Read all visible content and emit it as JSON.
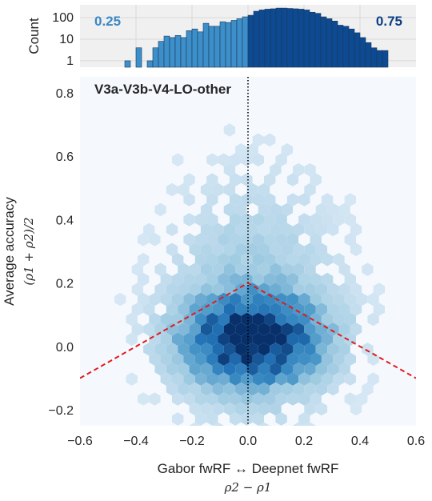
{
  "chart_data": [
    {
      "type": "bar",
      "panel": "top-histogram",
      "ylabel": "Count",
      "yscale": "log",
      "yticks": [
        "1",
        "10",
        "100"
      ],
      "xlim": [
        -0.6,
        0.6
      ],
      "ylim_log10": [
        -0.3,
        2.6
      ],
      "annotations": [
        {
          "text": "0.25",
          "side": "left",
          "color": "#3a88c4"
        },
        {
          "text": "0.75",
          "side": "right",
          "color": "#0b3e82"
        }
      ],
      "bin_width": 0.02,
      "bins": [
        {
          "x0": -0.44,
          "count": 1
        },
        {
          "x0": -0.42,
          "count": 0
        },
        {
          "x0": -0.4,
          "count": 4
        },
        {
          "x0": -0.38,
          "count": 0
        },
        {
          "x0": -0.36,
          "count": 1
        },
        {
          "x0": -0.34,
          "count": 4
        },
        {
          "x0": -0.32,
          "count": 8
        },
        {
          "x0": -0.3,
          "count": 14
        },
        {
          "x0": -0.28,
          "count": 12
        },
        {
          "x0": -0.26,
          "count": 15
        },
        {
          "x0": -0.24,
          "count": 12
        },
        {
          "x0": -0.22,
          "count": 25
        },
        {
          "x0": -0.2,
          "count": 30
        },
        {
          "x0": -0.18,
          "count": 22
        },
        {
          "x0": -0.16,
          "count": 55
        },
        {
          "x0": -0.14,
          "count": 40
        },
        {
          "x0": -0.12,
          "count": 40
        },
        {
          "x0": -0.1,
          "count": 65
        },
        {
          "x0": -0.08,
          "count": 60
        },
        {
          "x0": -0.06,
          "count": 75
        },
        {
          "x0": -0.04,
          "count": 90
        },
        {
          "x0": -0.02,
          "count": 110
        },
        {
          "x0": 0.0,
          "count": 130
        },
        {
          "x0": 0.02,
          "count": 200
        },
        {
          "x0": 0.04,
          "count": 230
        },
        {
          "x0": 0.06,
          "count": 250
        },
        {
          "x0": 0.08,
          "count": 260
        },
        {
          "x0": 0.1,
          "count": 280
        },
        {
          "x0": 0.12,
          "count": 280
        },
        {
          "x0": 0.14,
          "count": 270
        },
        {
          "x0": 0.16,
          "count": 260
        },
        {
          "x0": 0.18,
          "count": 250
        },
        {
          "x0": 0.2,
          "count": 230
        },
        {
          "x0": 0.22,
          "count": 180
        },
        {
          "x0": 0.24,
          "count": 160
        },
        {
          "x0": 0.26,
          "count": 110
        },
        {
          "x0": 0.28,
          "count": 90
        },
        {
          "x0": 0.3,
          "count": 70
        },
        {
          "x0": 0.32,
          "count": 45
        },
        {
          "x0": 0.34,
          "count": 40
        },
        {
          "x0": 0.36,
          "count": 30
        },
        {
          "x0": 0.38,
          "count": 20
        },
        {
          "x0": 0.4,
          "count": 12
        },
        {
          "x0": 0.42,
          "count": 7
        },
        {
          "x0": 0.44,
          "count": 4
        },
        {
          "x0": 0.46,
          "count": 3
        },
        {
          "x0": 0.48,
          "count": 3
        }
      ],
      "colors": {
        "left": "#3d8fc9",
        "right": "#0d4a91",
        "edge": "#1b3a5e"
      }
    },
    {
      "type": "heatmap",
      "subtype": "hexbin",
      "panel": "main",
      "title": "V3a-V3b-V4-LO-other",
      "xlabel": "Gabor fwRF ↔ Deepnet fwRF",
      "xlabel_math": "ρ2 − ρ1",
      "ylabel": "Average accuracy",
      "ylabel_math": "(ρ1 + ρ2)/2",
      "xlim": [
        -0.6,
        0.6
      ],
      "ylim": [
        -0.25,
        0.85
      ],
      "xticks": [
        "−0.6",
        "−0.4",
        "−0.2",
        "0.0",
        "0.2",
        "0.4",
        "0.6"
      ],
      "yticks": [
        "−0.2",
        "0.0",
        "0.2",
        "0.4",
        "0.6",
        "0.8"
      ],
      "reference_lines": [
        {
          "kind": "vertical",
          "x": 0.0,
          "style": "dotted",
          "color": "#000000"
        },
        {
          "kind": "V",
          "apex": [
            0.0,
            0.2
          ],
          "slope": 0.5,
          "style": "dashed",
          "color": "#e31a1c"
        }
      ],
      "density_model": {
        "center": [
          0.02,
          0.02
        ],
        "sigma_x": 0.16,
        "sigma_y": 0.09,
        "halo_weight": 0.22,
        "halo_sigma_y": 0.25
      },
      "background": "#f5f9fe"
    }
  ]
}
